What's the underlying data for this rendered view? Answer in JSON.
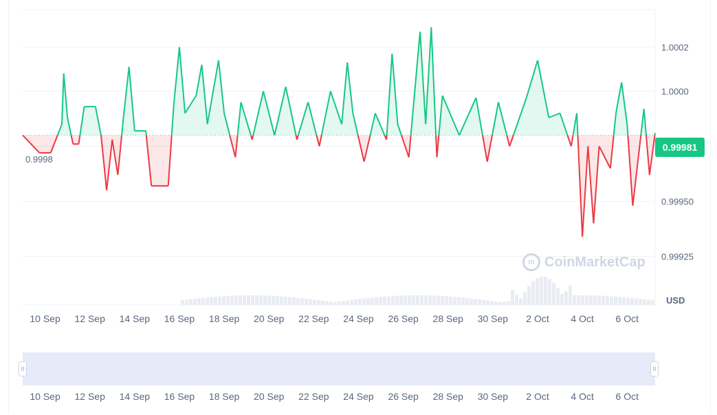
{
  "chart_data": {
    "type": "line",
    "baseline": 0.9998,
    "baseline_label": "0.9998",
    "current_price_label": "0.99981",
    "currency": "USD",
    "y_ticks": [
      "1.0002",
      "1.0000",
      "0.99975",
      "0.99950",
      "0.99925"
    ],
    "y_tick_values": [
      1.0002,
      1.0,
      0.99975,
      0.9995,
      0.99925
    ],
    "ylim": [
      0.99903,
      1.00037
    ],
    "x_ticks": [
      "10 Sep",
      "12 Sep",
      "14 Sep",
      "16 Sep",
      "18 Sep",
      "20 Sep",
      "22 Sep",
      "24 Sep",
      "26 Sep",
      "28 Sep",
      "30 Sep",
      "2 Oct",
      "4 Oct",
      "6 Oct"
    ],
    "above_color": "#16c784",
    "below_color": "#ea3943",
    "price_series": [
      [
        "9 Sep 00:00",
        0.9998
      ],
      [
        "9 Sep 18:00",
        0.99972
      ],
      [
        "10 Sep 06:00",
        0.99972
      ],
      [
        "10 Sep 18:00",
        0.99985
      ],
      [
        "10 Sep 20:00",
        1.00008
      ],
      [
        "11 Sep 00:00",
        0.99988
      ],
      [
        "11 Sep 06:00",
        0.99976
      ],
      [
        "11 Sep 12:00",
        0.99976
      ],
      [
        "11 Sep 18:00",
        0.99993
      ],
      [
        "12 Sep 06:00",
        0.99993
      ],
      [
        "12 Sep 12:00",
        0.9998
      ],
      [
        "12 Sep 18:00",
        0.99955
      ],
      [
        "13 Sep 00:00",
        0.99978
      ],
      [
        "13 Sep 06:00",
        0.99962
      ],
      [
        "13 Sep 12:00",
        0.99988
      ],
      [
        "13 Sep 18:00",
        1.00011
      ],
      [
        "14 Sep 00:00",
        0.99982
      ],
      [
        "14 Sep 12:00",
        0.99982
      ],
      [
        "14 Sep 18:00",
        0.99957
      ],
      [
        "15 Sep 12:00",
        0.99957
      ],
      [
        "15 Sep 18:00",
        0.99994
      ],
      [
        "16 Sep 00:00",
        1.0002
      ],
      [
        "16 Sep 06:00",
        0.9999
      ],
      [
        "16 Sep 18:00",
        0.99998
      ],
      [
        "17 Sep 00:00",
        1.00012
      ],
      [
        "17 Sep 06:00",
        0.99985
      ],
      [
        "17 Sep 18:00",
        1.00014
      ],
      [
        "18 Sep 00:00",
        0.9999
      ],
      [
        "18 Sep 12:00",
        0.9997
      ],
      [
        "18 Sep 18:00",
        0.99995
      ],
      [
        "19 Sep 06:00",
        0.99978
      ],
      [
        "19 Sep 18:00",
        1.0
      ],
      [
        "20 Sep 06:00",
        0.9998
      ],
      [
        "20 Sep 18:00",
        1.00002
      ],
      [
        "21 Sep 06:00",
        0.99978
      ],
      [
        "21 Sep 18:00",
        0.99995
      ],
      [
        "22 Sep 06:00",
        0.99975
      ],
      [
        "22 Sep 18:00",
        1.0
      ],
      [
        "23 Sep 06:00",
        0.99985
      ],
      [
        "23 Sep 12:00",
        1.00013
      ],
      [
        "23 Sep 18:00",
        0.9999
      ],
      [
        "24 Sep 06:00",
        0.99968
      ],
      [
        "24 Sep 18:00",
        0.9999
      ],
      [
        "25 Sep 06:00",
        0.99978
      ],
      [
        "25 Sep 12:00",
        1.00017
      ],
      [
        "25 Sep 18:00",
        0.99985
      ],
      [
        "26 Sep 06:00",
        0.9997
      ],
      [
        "26 Sep 18:00",
        1.00027
      ],
      [
        "27 Sep 00:00",
        0.99985
      ],
      [
        "27 Sep 06:00",
        1.00029
      ],
      [
        "27 Sep 12:00",
        0.9997
      ],
      [
        "27 Sep 18:00",
        0.99998
      ],
      [
        "28 Sep 12:00",
        0.9998
      ],
      [
        "29 Sep 06:00",
        0.99997
      ],
      [
        "29 Sep 18:00",
        0.99968
      ],
      [
        "30 Sep 06:00",
        0.99995
      ],
      [
        "30 Sep 18:00",
        0.99975
      ],
      [
        "1 Oct 12:00",
        0.99997
      ],
      [
        "2 Oct 00:00",
        1.00014
      ],
      [
        "2 Oct 12:00",
        0.99988
      ],
      [
        "3 Oct 00:00",
        0.9999
      ],
      [
        "3 Oct 12:00",
        0.99975
      ],
      [
        "3 Oct 18:00",
        0.9999
      ],
      [
        "4 Oct 00:00",
        0.99934
      ],
      [
        "4 Oct 06:00",
        0.99975
      ],
      [
        "4 Oct 12:00",
        0.9994
      ],
      [
        "4 Oct 18:00",
        0.99975
      ],
      [
        "5 Oct 06:00",
        0.99965
      ],
      [
        "5 Oct 12:00",
        0.9999
      ],
      [
        "5 Oct 18:00",
        1.00004
      ],
      [
        "6 Oct 00:00",
        0.99985
      ],
      [
        "6 Oct 06:00",
        0.99948
      ],
      [
        "6 Oct 12:00",
        0.9997
      ],
      [
        "6 Oct 18:00",
        0.99992
      ],
      [
        "7 Oct 00:00",
        0.99962
      ],
      [
        "7 Oct 06:00",
        0.99981
      ]
    ]
  }
}
